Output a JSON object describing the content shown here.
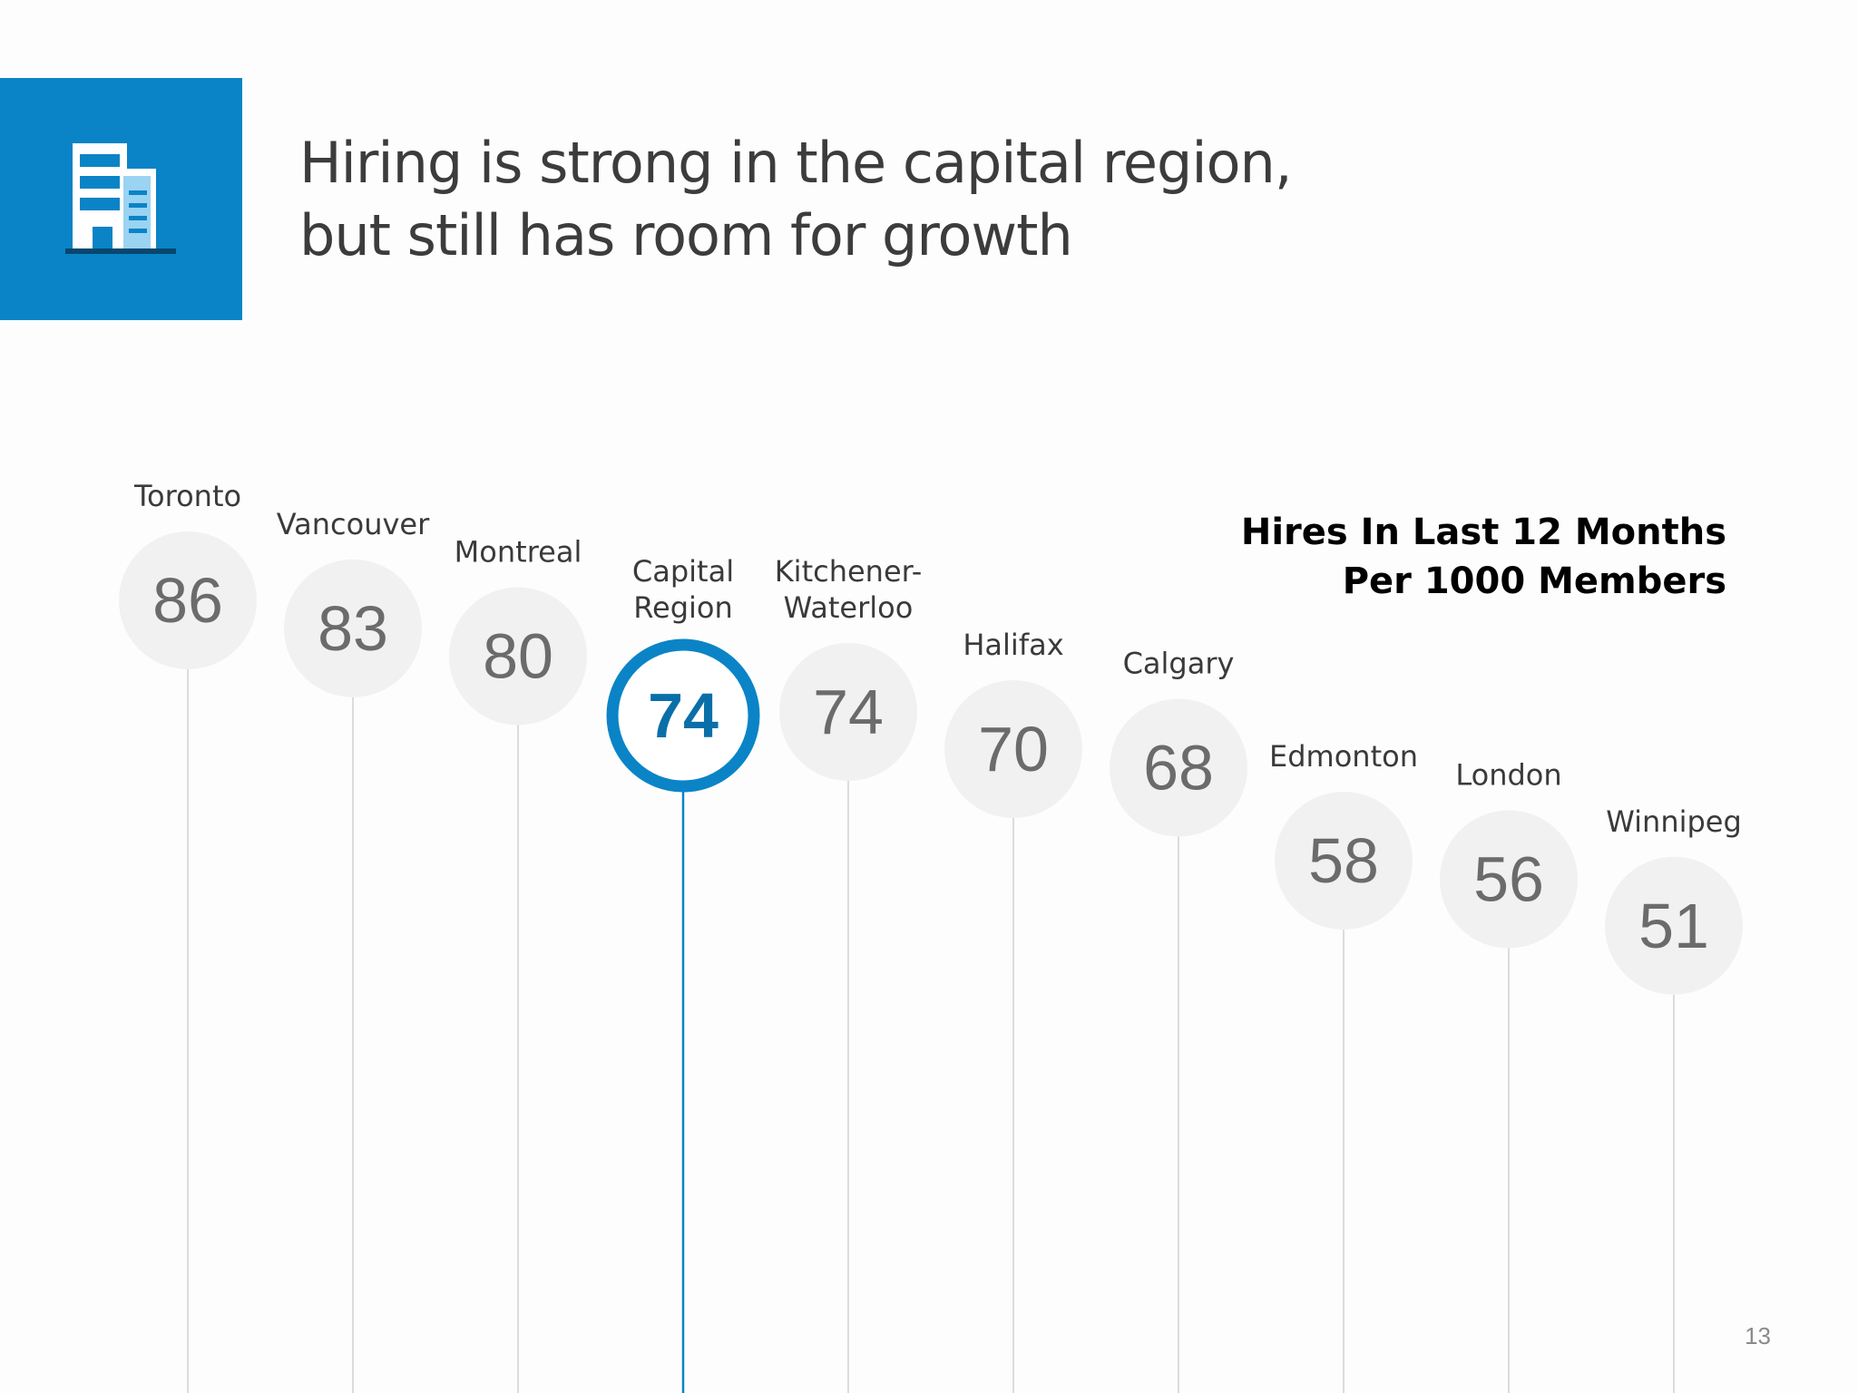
{
  "slide": {
    "title_line1": "Hiring is strong in the capital region,",
    "title_line2": "but still has room for growth",
    "page_number": "13",
    "icon": "office-building-icon"
  },
  "colors": {
    "accent": "#0a84c6",
    "bubble": "#f1f1f1",
    "bubble_text": "#6b6b6b",
    "stem": "#dcdcdc"
  },
  "chart_data": {
    "type": "lollipop",
    "legend_line1": "Hires In Last 12 Months",
    "legend_line2": "Per 1000 Members",
    "categories": [
      "Toronto",
      "Vancouver",
      "Montreal",
      "Capital Region",
      "Kitchener-Waterloo",
      "Halifax",
      "Calgary",
      "Edmonton",
      "London",
      "Winnipeg"
    ],
    "label_lines": [
      [
        "Toronto"
      ],
      [
        "Vancouver"
      ],
      [
        "Montreal"
      ],
      [
        "Capital",
        "Region"
      ],
      [
        "Kitchener-",
        "Waterloo"
      ],
      [
        "Halifax"
      ],
      [
        "Calgary"
      ],
      [
        "Edmonton"
      ],
      [
        "London"
      ],
      [
        "Winnipeg"
      ]
    ],
    "values": [
      86,
      83,
      80,
      74,
      74,
      70,
      68,
      58,
      56,
      51
    ],
    "highlight": "Capital Region"
  }
}
